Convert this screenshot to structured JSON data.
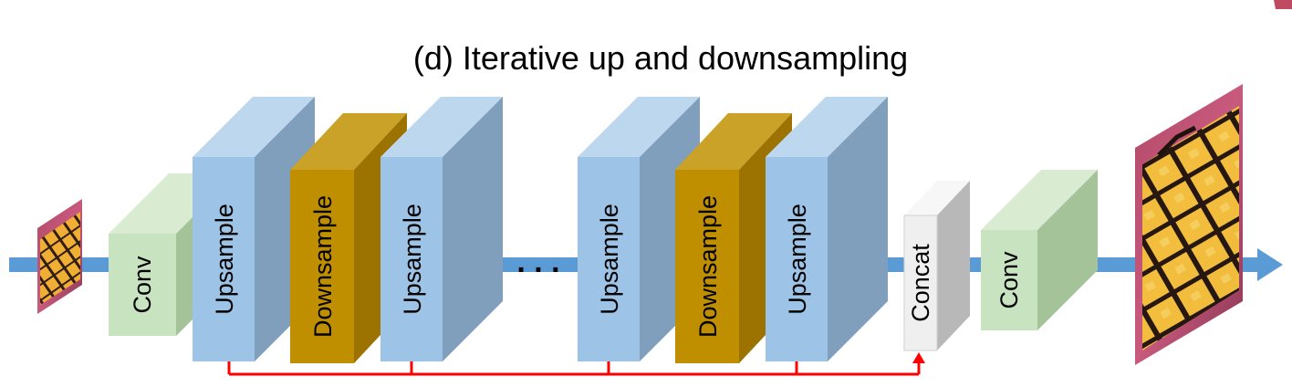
{
  "title": "(d) Iterative up and downsampling",
  "ellipsis": ". . .",
  "blocks": [
    {
      "label": "Conv"
    },
    {
      "label": "Upsample"
    },
    {
      "label": "Downsample"
    },
    {
      "label": "Upsample"
    },
    {
      "label": "Upsample"
    },
    {
      "label": "Downsample"
    },
    {
      "label": "Upsample"
    },
    {
      "label": "Concat"
    },
    {
      "label": "Conv"
    }
  ],
  "colors": {
    "flow_arrow": "#5b9bd5",
    "skip_line": "#ff0000",
    "conv_front": "#c8e3bf",
    "upsample_front": "#9dc3e6",
    "downsample_front": "#bf8f00",
    "concat_front": "#efefef"
  },
  "images": {
    "input": "low-resolution-butterfly-image",
    "output": "high-resolution-butterfly-image"
  }
}
